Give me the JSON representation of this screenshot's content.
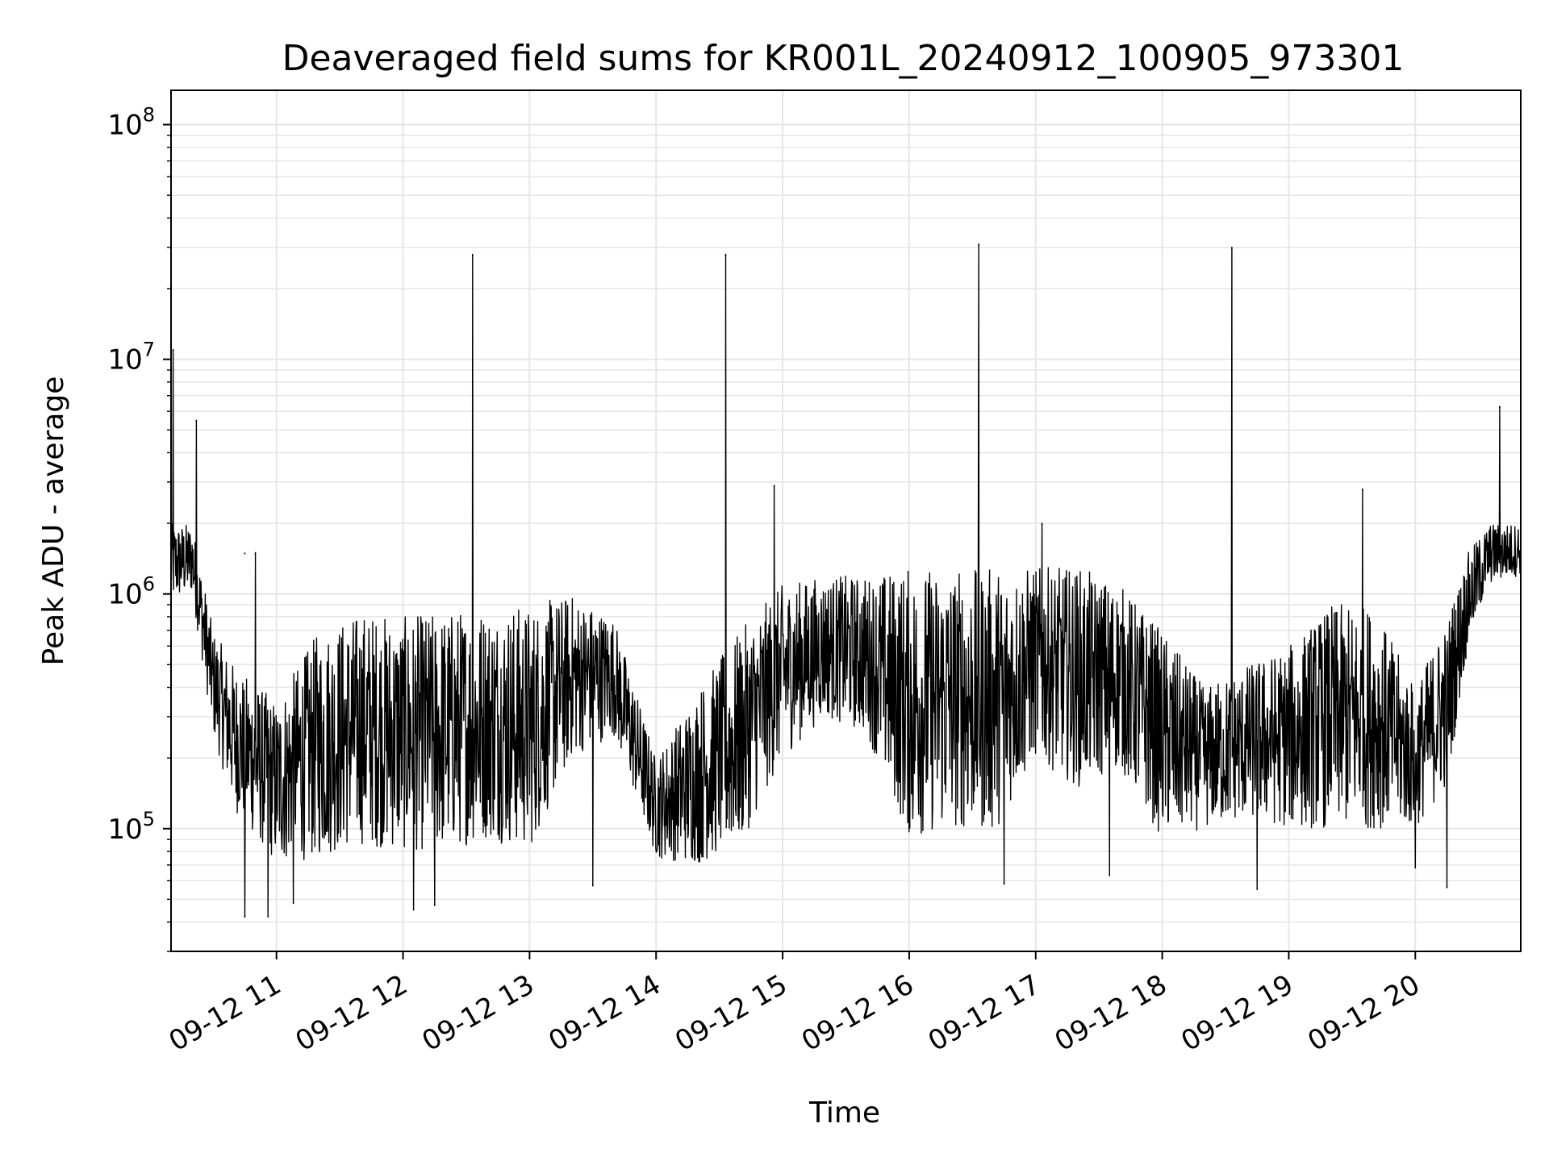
{
  "chart_data": {
    "type": "line",
    "title": "Deaveraged field sums for KR001L_20240912_100905_973301",
    "xlabel": "Time",
    "ylabel": "Peak ADU - average",
    "xscale": "time",
    "yscale": "log",
    "xlim": [
      "2024-09-12 10:10",
      "2024-09-12 20:50"
    ],
    "ylim": [
      30000,
      140000000
    ],
    "grid": true,
    "line_color": "#000000",
    "grid_color": "#e6e6e6",
    "x_ticks": [
      {
        "value": "2024-09-12 11:00",
        "label": "09-12 11"
      },
      {
        "value": "2024-09-12 12:00",
        "label": "09-12 12"
      },
      {
        "value": "2024-09-12 13:00",
        "label": "09-12 13"
      },
      {
        "value": "2024-09-12 14:00",
        "label": "09-12 14"
      },
      {
        "value": "2024-09-12 15:00",
        "label": "09-12 15"
      },
      {
        "value": "2024-09-12 16:00",
        "label": "09-12 16"
      },
      {
        "value": "2024-09-12 17:00",
        "label": "09-12 17"
      },
      {
        "value": "2024-09-12 18:00",
        "label": "09-12 18"
      },
      {
        "value": "2024-09-12 19:00",
        "label": "09-12 19"
      },
      {
        "value": "2024-09-12 20:00",
        "label": "09-12 20"
      }
    ],
    "y_ticks": [
      {
        "value": 100000,
        "base": "10",
        "exp": "5"
      },
      {
        "value": 1000000,
        "base": "10",
        "exp": "6"
      },
      {
        "value": 10000000,
        "base": "10",
        "exp": "7"
      },
      {
        "value": 100000000,
        "base": "10",
        "exp": "8"
      }
    ],
    "envelope": {
      "description": "typical low/high range of the noisy series over time",
      "t": [
        "2024-09-12 10:10",
        "2024-09-12 10:20",
        "2024-09-12 10:30",
        "2024-09-12 10:40",
        "2024-09-12 11:00",
        "2024-09-12 11:20",
        "2024-09-12 11:40",
        "2024-09-12 12:00",
        "2024-09-12 12:20",
        "2024-09-12 12:40",
        "2024-09-12 13:00",
        "2024-09-12 13:20",
        "2024-09-12 13:40",
        "2024-09-12 14:00",
        "2024-09-12 14:20",
        "2024-09-12 14:40",
        "2024-09-12 15:00",
        "2024-09-12 15:20",
        "2024-09-12 15:40",
        "2024-09-12 16:00",
        "2024-09-12 16:20",
        "2024-09-12 16:40",
        "2024-09-12 17:00",
        "2024-09-12 17:20",
        "2024-09-12 17:40",
        "2024-09-12 18:00",
        "2024-09-12 18:20",
        "2024-09-12 18:40",
        "2024-09-12 19:00",
        "2024-09-12 19:20",
        "2024-09-12 19:40",
        "2024-09-12 20:00",
        "2024-09-12 20:15",
        "2024-09-12 20:25",
        "2024-09-12 20:35",
        "2024-09-12 20:50"
      ],
      "low": [
        900000,
        1000000,
        250000,
        120000,
        70000,
        75000,
        85000,
        80000,
        80000,
        90000,
        80000,
        200000,
        250000,
        75000,
        70000,
        85000,
        200000,
        300000,
        250000,
        90000,
        100000,
        95000,
        200000,
        150000,
        180000,
        90000,
        100000,
        110000,
        100000,
        100000,
        100000,
        100000,
        150000,
        600000,
        1100000,
        1200000
      ],
      "high": [
        2000000,
        2000000,
        700000,
        500000,
        350000,
        700000,
        850000,
        800000,
        850000,
        900000,
        900000,
        1000000,
        800000,
        200000,
        400000,
        700000,
        1100000,
        1200000,
        1200000,
        1300000,
        1300000,
        1300000,
        1300000,
        1300000,
        1100000,
        700000,
        400000,
        500000,
        600000,
        900000,
        900000,
        400000,
        800000,
        1500000,
        2000000,
        2000000
      ]
    },
    "spikes": [
      {
        "t": "2024-09-12 10:11",
        "value": 11000000
      },
      {
        "t": "2024-09-12 10:22",
        "value": 5500000
      },
      {
        "t": "2024-09-12 10:45",
        "value": 1500000
      },
      {
        "t": "2024-09-12 10:50",
        "value": 1500000
      },
      {
        "t": "2024-09-12 12:33",
        "value": 28000000
      },
      {
        "t": "2024-09-12 14:33",
        "value": 28000000
      },
      {
        "t": "2024-09-12 14:56",
        "value": 2900000
      },
      {
        "t": "2024-09-12 16:33",
        "value": 31000000
      },
      {
        "t": "2024-09-12 17:03",
        "value": 2000000
      },
      {
        "t": "2024-09-12 18:33",
        "value": 30000000
      },
      {
        "t": "2024-09-12 19:35",
        "value": 2800000
      },
      {
        "t": "2024-09-12 20:40",
        "value": 6300000
      }
    ],
    "dips": [
      {
        "t": "2024-09-12 10:45",
        "value": 42000
      },
      {
        "t": "2024-09-12 10:56",
        "value": 42000
      },
      {
        "t": "2024-09-12 11:08",
        "value": 48000
      },
      {
        "t": "2024-09-12 12:05",
        "value": 45000
      },
      {
        "t": "2024-09-12 12:15",
        "value": 47000
      },
      {
        "t": "2024-09-12 13:30",
        "value": 57000
      },
      {
        "t": "2024-09-12 16:45",
        "value": 58000
      },
      {
        "t": "2024-09-12 17:35",
        "value": 63000
      },
      {
        "t": "2024-09-12 18:45",
        "value": 55000
      },
      {
        "t": "2024-09-12 20:00",
        "value": 68000
      },
      {
        "t": "2024-09-12 20:15",
        "value": 56000
      }
    ]
  }
}
